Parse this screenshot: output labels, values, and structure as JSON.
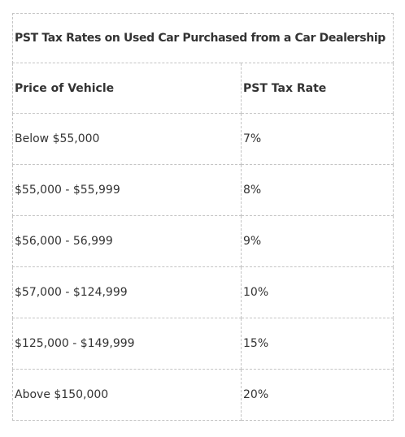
{
  "table": {
    "title": "PST Tax Rates on Used Car Purchased from a Car Dealership",
    "headers": [
      "Price of Vehicle",
      "PST Tax Rate"
    ],
    "rows": [
      [
        "Below $55,000",
        "7%"
      ],
      [
        "$55,000 - $55,999",
        "8%"
      ],
      [
        "$56,000 - 56,999",
        "9%"
      ],
      [
        "$57,000 - $124,999",
        "10%"
      ],
      [
        "$125,000 - $149,999",
        "15%"
      ],
      [
        "Above $150,000",
        "20%"
      ]
    ]
  }
}
